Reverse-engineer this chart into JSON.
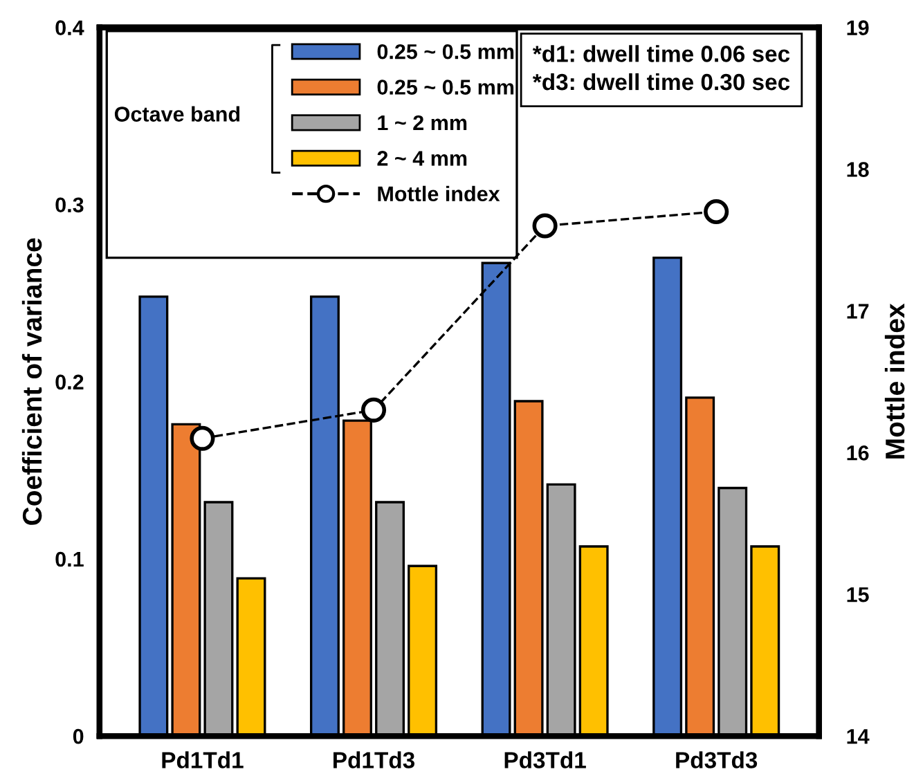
{
  "chart_data": {
    "type": "bar",
    "categories": [
      "Pd1Td1",
      "Pd1Td3",
      "Pd3Td1",
      "Pd3Td3"
    ],
    "ylabel": "Coefficient of variance",
    "y2label": "Mottle index",
    "legend_title": "Octave band",
    "series": [
      {
        "name": "0.25 ~ 0.5 mm",
        "color": "#4472c4",
        "values": [
          0.248,
          0.248,
          0.267,
          0.27
        ]
      },
      {
        "name": "0.25 ~ 0.5 mm",
        "color": "#ed7d31",
        "values": [
          0.176,
          0.178,
          0.189,
          0.191
        ]
      },
      {
        "name": "1 ~ 2 mm",
        "color": "#a5a5a5",
        "values": [
          0.132,
          0.132,
          0.142,
          0.14
        ]
      },
      {
        "name": "2 ~ 4 mm",
        "color": "#ffc000",
        "values": [
          0.089,
          0.096,
          0.107,
          0.107
        ]
      },
      {
        "name": "Mottle index",
        "type": "line",
        "axis": "y2",
        "color": "#000000",
        "marker": "circle",
        "line_style": "dashed",
        "values": [
          16.1,
          16.3,
          17.6,
          17.7
        ]
      }
    ],
    "ylim": [
      0,
      0.4
    ],
    "yticks": [
      0,
      0.1,
      0.2,
      0.3,
      0.4
    ],
    "y2lim": [
      14,
      19
    ],
    "y2ticks": [
      14,
      15,
      16,
      17,
      18,
      19
    ],
    "annotations": [
      "*d1: dwell time 0.06 sec",
      "*d3: dwell time 0.30 sec"
    ],
    "legend": "top left",
    "grid": false
  }
}
